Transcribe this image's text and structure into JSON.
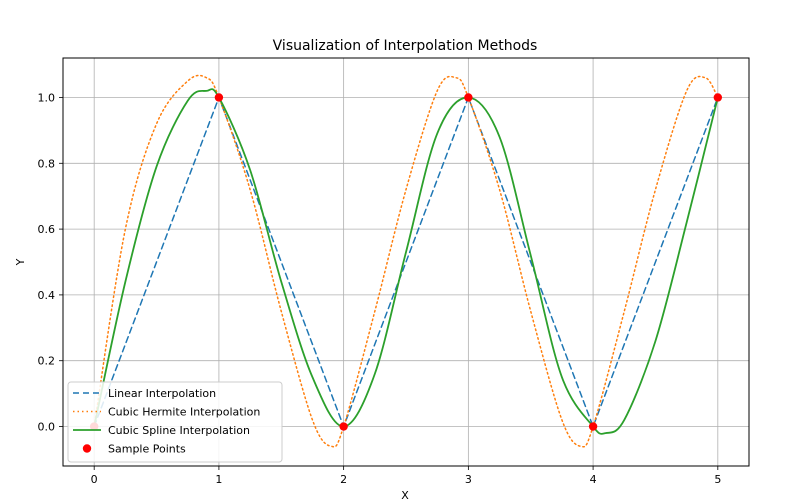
{
  "chart_data": {
    "type": "line",
    "title": "Visualization of Interpolation Methods",
    "xlabel": "X",
    "ylabel": "Y",
    "xlim": [
      -0.25,
      5.25
    ],
    "ylim": [
      -0.12,
      1.12
    ],
    "x_ticks": [
      0,
      1,
      2,
      3,
      4,
      5
    ],
    "x_tick_labels": [
      "0",
      "1",
      "2",
      "3",
      "4",
      "5"
    ],
    "y_ticks": [
      0.0,
      0.2,
      0.4,
      0.6,
      0.8,
      1.0
    ],
    "y_tick_labels": [
      "0.0",
      "0.2",
      "0.4",
      "0.6",
      "0.8",
      "1.0"
    ],
    "grid": true,
    "legend_position": "lower-left",
    "series": [
      {
        "name": "Linear Interpolation",
        "kind": "line",
        "style": "dashed",
        "color": "#1f77b4",
        "x": [
          0,
          1,
          2,
          3,
          4,
          5
        ],
        "y": [
          0,
          1,
          0,
          1,
          0,
          1
        ]
      },
      {
        "name": "Cubic Hermite Interpolation",
        "kind": "line",
        "style": "dotted",
        "color": "#ff7f0e",
        "x": [
          0,
          0.25,
          0.5,
          0.75,
          0.9,
          1,
          1.25,
          1.5,
          1.75,
          1.9,
          2,
          2.25,
          2.5,
          2.75,
          2.9,
          3,
          3.25,
          3.5,
          3.75,
          3.9,
          4,
          4.25,
          4.5,
          4.75,
          4.9,
          5
        ],
        "y": [
          0,
          0.6,
          0.92,
          1.05,
          1.06,
          1.0,
          0.72,
          0.35,
          0.02,
          -0.06,
          0.0,
          0.35,
          0.72,
          1.02,
          1.06,
          1.0,
          0.72,
          0.35,
          0.02,
          -0.06,
          0.0,
          0.35,
          0.72,
          1.02,
          1.06,
          1.0
        ]
      },
      {
        "name": "Cubic Spline Interpolation",
        "kind": "line",
        "style": "solid",
        "color": "#2ca02c",
        "x": [
          0,
          0.25,
          0.5,
          0.75,
          0.9,
          1,
          1.25,
          1.5,
          1.75,
          2,
          2.25,
          2.5,
          2.75,
          3,
          3.25,
          3.5,
          3.75,
          4,
          4.1,
          4.25,
          4.5,
          4.75,
          5
        ],
        "y": [
          0,
          0.44,
          0.79,
          0.99,
          1.02,
          1.0,
          0.78,
          0.44,
          0.15,
          0.0,
          0.16,
          0.53,
          0.89,
          1.0,
          0.88,
          0.52,
          0.15,
          0.0,
          -0.02,
          0.02,
          0.26,
          0.62,
          1.0
        ]
      },
      {
        "name": "Sample Points",
        "kind": "scatter",
        "color": "#ff0000",
        "x": [
          0,
          1,
          2,
          3,
          4,
          5
        ],
        "y": [
          0,
          1,
          0,
          1,
          0,
          1
        ]
      }
    ]
  }
}
